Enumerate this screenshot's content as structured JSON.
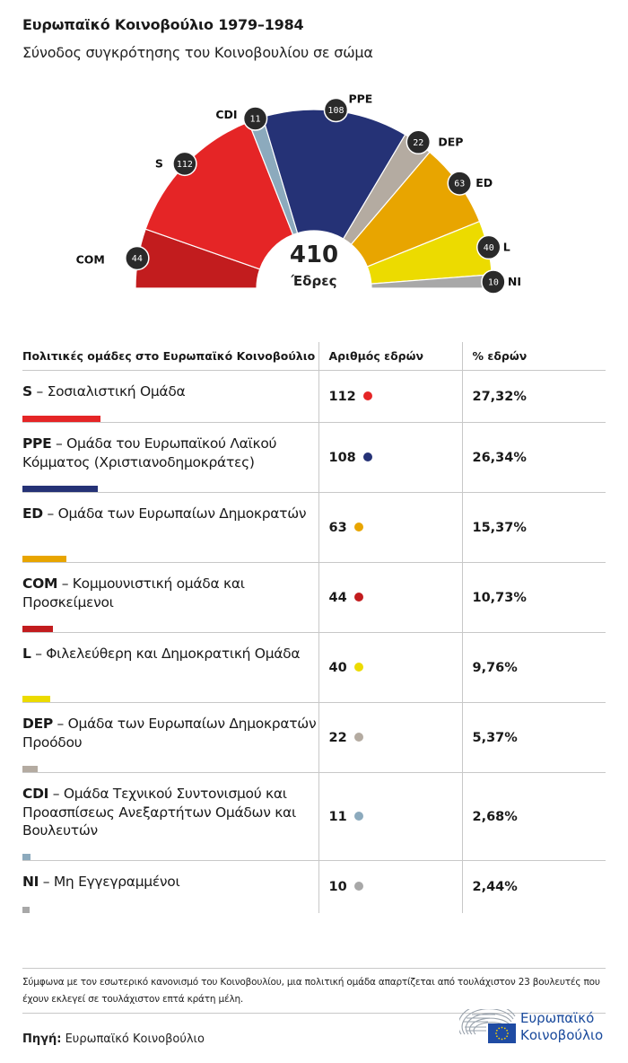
{
  "header": {
    "title": "Ευρωπαϊκό Κοινοβούλιο 1979–1984",
    "subtitle": "Σύνοδος συγκρότησης του Κοινοβουλίου σε σώμα"
  },
  "chart_data": {
    "type": "pie",
    "subtype": "hemicycle",
    "title": "Ευρωπαϊκό Κοινοβούλιο 1979–1984",
    "subtitle": "Σύνοδος συγκρότησης του Κοινοβουλίου σε σώμα",
    "total": 410,
    "total_label": "Έδρες",
    "order": "left-to-right",
    "series": [
      {
        "name": "COM",
        "value": 44,
        "color": "#c21c1e"
      },
      {
        "name": "S",
        "value": 112,
        "color": "#e52526"
      },
      {
        "name": "CDI",
        "value": 11,
        "color": "#8caabd"
      },
      {
        "name": "PPE",
        "value": 108,
        "color": "#253276"
      },
      {
        "name": "DEP",
        "value": 22,
        "color": "#b4aba1"
      },
      {
        "name": "ED",
        "value": 63,
        "color": "#e8a500"
      },
      {
        "name": "L",
        "value": 40,
        "color": "#ecdb00"
      },
      {
        "name": "NI",
        "value": 10,
        "color": "#a8a8a8"
      }
    ]
  },
  "table": {
    "headers": [
      "Πολιτικές ομάδες στο Ευρωπαϊκό Κοινοβούλιο",
      "Αριθμός εδρών",
      "% εδρών"
    ],
    "rows": [
      {
        "abbr": "S",
        "desc": " – Σοσιαλιστική Ομάδα",
        "seats": "112",
        "pct": "27,32%",
        "seat_value": 112,
        "color": "#e52526"
      },
      {
        "abbr": "PPE",
        "desc": " – Ομάδα του Ευρωπαϊκού Λαϊκού Κόμματος (Χριστιανοδημοκράτες)",
        "seats": "108",
        "pct": "26,34%",
        "seat_value": 108,
        "color": "#253276"
      },
      {
        "abbr": "ED",
        "desc": " – Ομάδα των Ευρωπαίων Δημοκρατών",
        "seats": "63",
        "pct": "15,37%",
        "seat_value": 63,
        "color": "#e8a500"
      },
      {
        "abbr": "COM",
        "desc": " – Κομμουνιστική ομάδα και Προσκείμενοι",
        "seats": "44",
        "pct": "10,73%",
        "seat_value": 44,
        "color": "#c21c1e"
      },
      {
        "abbr": "L",
        "desc": " – Φιλελεύθερη και Δημοκρατική Ομάδα",
        "seats": "40",
        "pct": "9,76%",
        "seat_value": 40,
        "color": "#ecdb00"
      },
      {
        "abbr": "DEP",
        "desc": " – Ομάδα των Ευρωπαίων Δημοκρατών Προόδου",
        "seats": "22",
        "pct": "5,37%",
        "seat_value": 22,
        "color": "#b4aba1"
      },
      {
        "abbr": "CDI",
        "desc": " – Ομάδα Τεχνικού Συντονισμού και Προασπίσεως Ανεξαρτήτων Ομάδων και Βουλευτών",
        "seats": "11",
        "pct": "2,68%",
        "seat_value": 11,
        "color": "#8caabd"
      },
      {
        "abbr": "NI",
        "desc": " – Μη Εγγεγραμμένοι",
        "seats": "10",
        "pct": "2,44%",
        "seat_value": 10,
        "color": "#a8a8a8"
      }
    ]
  },
  "footer": {
    "note": "Σύμφωνα με τον εσωτερικό κανονισμό του Κοινοβουλίου, μια πολιτική ομάδα απαρτίζεται από τουλάχιστον 23 βουλευτές που έχουν εκλεγεί σε τουλάχιστον επτά κράτη μέλη.",
    "source_label": "Πηγή:",
    "source_value": " Ευρωπαϊκό Κοινοβούλιο",
    "logo_line1": "Ευρωπαϊκό",
    "logo_line2": "Κοινοβούλιο",
    "logo_icon": "european-parliament-hemicycle-eu-flag-icon"
  }
}
